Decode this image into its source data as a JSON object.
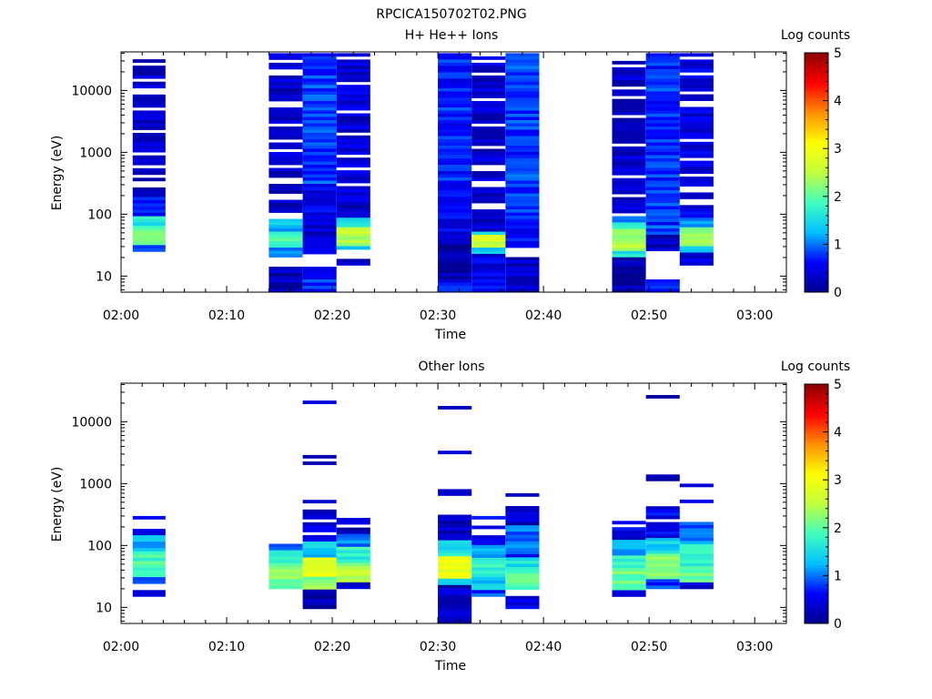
{
  "figure_title": "RPCICA150702T02.PNG",
  "colors": {
    "background": "#ffffff",
    "axes": "#000000",
    "colormap": [
      "#00008c",
      "#0000ff",
      "#00bfff",
      "#40ffbf",
      "#c0ff40",
      "#ffff00",
      "#ff9000",
      "#ff0000",
      "#8c0000"
    ]
  },
  "chart_data": [
    {
      "type": "heatmap",
      "title": "H+ He++ Ions",
      "xlabel": "Time",
      "ylabel": "Energy (eV)",
      "x_ticks": [
        "02:00",
        "02:10",
        "02:20",
        "02:30",
        "02:40",
        "02:50",
        "03:00"
      ],
      "x_range_min": [
        0,
        63
      ],
      "y_scale": "log",
      "y_ticks": [
        10,
        100,
        1000,
        10000
      ],
      "y_range": [
        5.5,
        42000
      ],
      "colorbar": {
        "label": "Log counts",
        "range": [
          0,
          5
        ],
        "ticks": [
          0,
          1,
          2,
          3,
          4,
          5
        ]
      },
      "columns": [
        {
          "t_start": 1.1,
          "t_end": 4.2,
          "e_min": 25,
          "e_max": 36000,
          "levels": [
            [
              25,
              30,
              1.0
            ],
            [
              30,
              60,
              2.1
            ],
            [
              60,
              90,
              1.7
            ],
            [
              90,
              200,
              0.7
            ],
            [
              200,
              36000,
              0.3
            ]
          ],
          "gaps": [
            [
              33000,
              36000
            ],
            [
              25000,
              29000
            ],
            [
              14000,
              16000
            ],
            [
              9000,
              10500
            ],
            [
              4500,
              5200
            ],
            [
              2100,
              2400
            ],
            [
              900,
              1000
            ],
            [
              560,
              620
            ],
            [
              380,
              420
            ],
            [
              280,
              330
            ]
          ]
        },
        {
          "t_start": 14.0,
          "t_end": 17.2,
          "e_min": 5.5,
          "e_max": 40000,
          "levels": [
            [
              5.5,
              15,
              0.2
            ],
            [
              15,
              20,
              0
            ],
            [
              20,
              30,
              1.0
            ],
            [
              30,
              55,
              1.9
            ],
            [
              55,
              80,
              1.3
            ],
            [
              80,
              120,
              0.6
            ],
            [
              120,
              40000,
              0.35
            ]
          ],
          "gaps": [
            [
              15,
              20
            ],
            [
              80,
              110
            ],
            [
              170,
              220
            ],
            [
              320,
              380
            ],
            [
              560,
              620
            ],
            [
              1000,
              1200
            ],
            [
              1500,
              1700
            ],
            [
              2500,
              2800
            ],
            [
              5500,
              6500
            ],
            [
              18000,
              21000
            ],
            [
              28000,
              31000
            ]
          ]
        },
        {
          "t_start": 17.2,
          "t_end": 20.4,
          "e_min": 5.5,
          "e_max": 40000,
          "levels": [
            [
              5.5,
              15,
              0.7
            ],
            [
              15,
              22,
              0
            ],
            [
              22,
              40,
              0.5
            ],
            [
              40,
              90,
              0.35
            ],
            [
              90,
              300,
              0.5
            ],
            [
              300,
              40000,
              0.8
            ]
          ],
          "gaps": [
            [
              15,
              22
            ]
          ]
        },
        {
          "t_start": 20.4,
          "t_end": 23.6,
          "e_min": 15,
          "e_max": 40000,
          "levels": [
            [
              15,
              20,
              0.2
            ],
            [
              20,
              27,
              0
            ],
            [
              27,
              32,
              1.3
            ],
            [
              32,
              65,
              2.5
            ],
            [
              65,
              90,
              1.6
            ],
            [
              90,
              40000,
              0.4
            ]
          ],
          "gaps": [
            [
              20,
              27
            ],
            [
              270,
              320
            ],
            [
              500,
              560
            ],
            [
              800,
              900
            ],
            [
              1800,
              2000
            ],
            [
              4200,
              4700
            ],
            [
              12000,
              13500
            ],
            [
              32000,
              35000
            ]
          ]
        },
        {
          "t_start": 30.0,
          "t_end": 33.2,
          "e_min": 5.5,
          "e_max": 40000,
          "levels": [
            [
              5.5,
              8,
              0.8
            ],
            [
              8,
              40,
              0.2
            ],
            [
              40,
              200,
              0.55
            ],
            [
              200,
              40000,
              0.7
            ]
          ],
          "gaps": []
        },
        {
          "t_start": 33.2,
          "t_end": 36.4,
          "e_min": 5.5,
          "e_max": 40000,
          "levels": [
            [
              5.5,
              22,
              0.5
            ],
            [
              22,
              30,
              1.2
            ],
            [
              30,
              45,
              2.7
            ],
            [
              45,
              55,
              1.5
            ],
            [
              55,
              40000,
              0.35
            ]
          ],
          "gaps": [
            [
              120,
              160
            ],
            [
              280,
              330
            ],
            [
              500,
              650
            ],
            [
              1100,
              1300
            ],
            [
              2600,
              3000
            ],
            [
              6500,
              7500
            ],
            [
              17000,
              19000
            ],
            [
              28000,
              31000
            ],
            [
              36000,
              39000
            ]
          ]
        },
        {
          "t_start": 36.4,
          "t_end": 39.6,
          "e_min": 5.5,
          "e_max": 40000,
          "levels": [
            [
              5.5,
              20,
              0.3
            ],
            [
              20,
              30,
              0
            ],
            [
              30,
              45,
              0.6
            ],
            [
              45,
              60,
              0.3
            ],
            [
              60,
              40000,
              0.8
            ]
          ],
          "gaps": [
            [
              20,
              30
            ]
          ]
        },
        {
          "t_start": 46.5,
          "t_end": 49.7,
          "e_min": 5.5,
          "e_max": 30000,
          "levels": [
            [
              5.5,
              20,
              0.2
            ],
            [
              20,
              25,
              1.6
            ],
            [
              25,
              55,
              2.4
            ],
            [
              55,
              75,
              1.8
            ],
            [
              75,
              90,
              1.1
            ],
            [
              90,
              30000,
              0.35
            ]
          ],
          "gaps": [
            [
              95,
              110
            ],
            [
              180,
              210
            ],
            [
              400,
              450
            ],
            [
              1200,
              1400
            ],
            [
              3500,
              4000
            ],
            [
              7500,
              8500
            ],
            [
              11000,
              12000
            ],
            [
              24000,
              28000
            ]
          ]
        },
        {
          "t_start": 49.7,
          "t_end": 52.9,
          "e_min": 5.5,
          "e_max": 40000,
          "levels": [
            [
              5.5,
              9,
              0.8
            ],
            [
              9,
              25,
              0
            ],
            [
              25,
              45,
              0.3
            ],
            [
              45,
              65,
              0.8
            ],
            [
              65,
              40000,
              0.75
            ]
          ],
          "gaps": [
            [
              9,
              25
            ]
          ]
        },
        {
          "t_start": 52.9,
          "t_end": 56.1,
          "e_min": 15,
          "e_max": 40000,
          "levels": [
            [
              15,
              25,
              0.4
            ],
            [
              25,
              32,
              1.3
            ],
            [
              32,
              65,
              2.3
            ],
            [
              65,
              90,
              1.1
            ],
            [
              90,
              40000,
              0.45
            ]
          ],
          "gaps": [
            [
              140,
              170
            ],
            [
              230,
              270
            ],
            [
              400,
              450
            ],
            [
              700,
              800
            ],
            [
              1500,
              1700
            ],
            [
              5500,
              6500
            ],
            [
              9000,
              10000
            ],
            [
              18000,
              20000
            ],
            [
              31000,
              34000
            ]
          ]
        }
      ]
    },
    {
      "type": "heatmap",
      "title": "Other Ions",
      "xlabel": "Time",
      "ylabel": "Energy (eV)",
      "x_ticks": [
        "02:00",
        "02:10",
        "02:20",
        "02:30",
        "02:40",
        "02:50",
        "03:00"
      ],
      "x_range_min": [
        0,
        63
      ],
      "y_scale": "log",
      "y_ticks": [
        10,
        100,
        1000,
        10000
      ],
      "y_range": [
        5.5,
        42000
      ],
      "colorbar": {
        "label": "Log counts",
        "range": [
          0,
          5
        ],
        "ticks": [
          0,
          1,
          2,
          3,
          4,
          5
        ]
      },
      "columns": [
        {
          "t_start": 1.1,
          "t_end": 4.2,
          "e_min": 15,
          "e_max": 300,
          "levels": [
            [
              15,
              20,
              0.2
            ],
            [
              20,
              25,
              0
            ],
            [
              25,
              30,
              1.0
            ],
            [
              30,
              80,
              1.9
            ],
            [
              80,
              150,
              1.2
            ],
            [
              150,
              300,
              0.4
            ]
          ],
          "gaps": [
            [
              20,
              25
            ],
            [
              190,
              270
            ]
          ]
        },
        {
          "t_start": 14.0,
          "t_end": 17.2,
          "e_min": 20,
          "e_max": 120,
          "levels": [
            [
              20,
              50,
              2.2
            ],
            [
              50,
              80,
              1.6
            ],
            [
              80,
              120,
              0.8
            ]
          ],
          "gaps": [
            [
              105,
              115
            ]
          ]
        },
        {
          "t_start": 17.2,
          "t_end": 20.4,
          "e_min": 9.5,
          "e_max": 22000,
          "levels": [
            [
              9.5,
              20,
              0.2
            ],
            [
              20,
              30,
              2.2
            ],
            [
              30,
              65,
              3.0
            ],
            [
              65,
              110,
              1.3
            ],
            [
              110,
              500,
              0.4
            ],
            [
              500,
              22000,
              0.2
            ]
          ],
          "gaps": [
            [
              145,
              165
            ],
            [
              250,
              280
            ],
            [
              380,
              480
            ],
            [
              550,
              1950
            ],
            [
              2300,
              2600
            ],
            [
              3000,
              19000
            ]
          ]
        },
        {
          "t_start": 20.4,
          "t_end": 23.6,
          "e_min": 20,
          "e_max": 280,
          "levels": [
            [
              20,
              25,
              0.4
            ],
            [
              25,
              50,
              2.4
            ],
            [
              50,
              90,
              1.7
            ],
            [
              90,
              160,
              1.0
            ],
            [
              160,
              280,
              0.3
            ]
          ],
          "gaps": [
            [
              185,
              225
            ],
            [
              240,
              260
            ]
          ]
        },
        {
          "t_start": 30.0,
          "t_end": 33.2,
          "e_min": 5.5,
          "e_max": 18000,
          "levels": [
            [
              5.5,
              22,
              0.3
            ],
            [
              22,
              30,
              1.5
            ],
            [
              30,
              70,
              2.9
            ],
            [
              70,
              120,
              1.5
            ],
            [
              120,
              18000,
              0.3
            ]
          ],
          "gaps": [
            [
              330,
              680
            ],
            [
              780,
              2900
            ],
            [
              3300,
              16500
            ]
          ]
        },
        {
          "t_start": 33.2,
          "t_end": 36.4,
          "e_min": 15,
          "e_max": 300,
          "levels": [
            [
              15,
              20,
              0.8
            ],
            [
              20,
              30,
              1.3
            ],
            [
              30,
              60,
              1.8
            ],
            [
              60,
              100,
              1.2
            ],
            [
              100,
              300,
              0.5
            ]
          ],
          "gaps": [
            [
              140,
              190
            ],
            [
              220,
              280
            ]
          ]
        },
        {
          "t_start": 36.4,
          "t_end": 39.6,
          "e_min": 9.5,
          "e_max": 700,
          "levels": [
            [
              9.5,
              15,
              0.5
            ],
            [
              15,
              20,
              0
            ],
            [
              20,
              35,
              1.9
            ],
            [
              35,
              65,
              1.6
            ],
            [
              65,
              75,
              0.6
            ],
            [
              75,
              200,
              1.0
            ],
            [
              200,
              700,
              0.3
            ]
          ],
          "gaps": [
            [
              15,
              20
            ],
            [
              300,
              320
            ],
            [
              460,
              640
            ]
          ]
        },
        {
          "t_start": 46.5,
          "t_end": 49.7,
          "e_min": 15,
          "e_max": 250,
          "levels": [
            [
              15,
              20,
              0.3
            ],
            [
              20,
              40,
              2.1
            ],
            [
              40,
              70,
              1.8
            ],
            [
              70,
              130,
              1.2
            ],
            [
              130,
              250,
              0.5
            ]
          ],
          "gaps": [
            [
              190,
              210
            ]
          ]
        },
        {
          "t_start": 49.7,
          "t_end": 52.9,
          "e_min": 20,
          "e_max": 27000,
          "levels": [
            [
              20,
              30,
              0.8
            ],
            [
              30,
              70,
              2.2
            ],
            [
              70,
              130,
              1.4
            ],
            [
              130,
              400,
              0.5
            ],
            [
              400,
              27000,
              0.2
            ]
          ],
          "gaps": [
            [
              240,
              260
            ],
            [
              420,
              1100
            ],
            [
              1400,
              24000
            ]
          ]
        },
        {
          "t_start": 52.9,
          "t_end": 56.1,
          "e_min": 20,
          "e_max": 1000,
          "levels": [
            [
              20,
              25,
              0.4
            ],
            [
              25,
              45,
              2.0
            ],
            [
              45,
              100,
              1.8
            ],
            [
              100,
              230,
              1.0
            ],
            [
              230,
              1000,
              0.3
            ]
          ],
          "gaps": [
            [
              240,
              480
            ],
            [
              560,
              900
            ]
          ]
        }
      ]
    }
  ]
}
